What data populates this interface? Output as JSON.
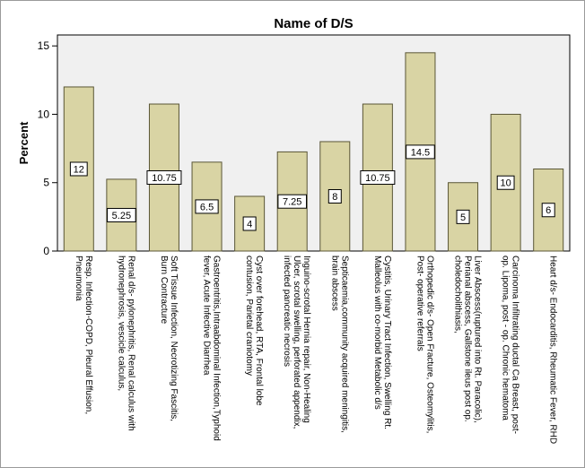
{
  "chart_data": {
    "type": "bar",
    "title": "Name of D/S",
    "xlabel": "",
    "ylabel": "Percent",
    "ylim": [
      0,
      15.8
    ],
    "yticks": [
      0,
      5,
      10,
      15
    ],
    "grid": false,
    "colors": {
      "bar_fill": "#d9d4a4",
      "bar_stroke": "#5a5636",
      "plot_background": "#f0f0f0",
      "axis": "#000000"
    },
    "categories": [
      [
        "Resp. Infection-COPD, Pleural Effusion,",
        "Pneumonia"
      ],
      [
        "Renal d/s- pylonephritis, Renal calculus with",
        "hydronephrosis, vescicle calculus,"
      ],
      [
        "Soft Tissue Infection, Necrotizing Fascitis,",
        "Burn Contracture"
      ],
      [
        "Gastroentritis,Intraabdominal Infection,Typhoid",
        "fever, Acute Infective Diarrhea"
      ],
      [
        "Cyst over forehead, RTA, Frontal lobe",
        "contusion, Parietal craniotomy"
      ],
      [
        "Inguino-scrotal Hernia repair, Non-Healing",
        "Ulcer, scrotal swelling, perforated appendix,",
        "infected pancreatic necrosis"
      ],
      [
        "Septicaemia,community acquired meningitis,",
        "brain abscess"
      ],
      [
        "Cystitis, Urinary Tract Infection, Swelling Rt.",
        "Malleolus with co-morbid Metabolic d/s"
      ],
      [
        "Orthopedic d/s- Open Fracture, Osteomylitis,",
        "Post- operative referrals"
      ],
      [
        "Liver Abscess(ruptured into Rt. Paracolic),",
        "Perianal abscess, Gallstone ileus post op.",
        "choledocholithiasis,"
      ],
      [
        "Carcinoma Infiltrating ductal Ca Breast, post-",
        "op. Lipoma, post - op. Chronic  hematoma"
      ],
      [
        "Heart d/s- Endocarditis, Rheumatic Fever, RHD"
      ]
    ],
    "values": [
      12,
      5.25,
      10.75,
      6.5,
      4,
      7.25,
      8,
      10.75,
      14.5,
      5,
      10,
      6
    ],
    "data_labels": [
      "12",
      "5.25",
      "10.75",
      "6.5",
      "4",
      "7.25",
      "8",
      "10.75",
      "14.5",
      "5",
      "10",
      "6"
    ]
  }
}
